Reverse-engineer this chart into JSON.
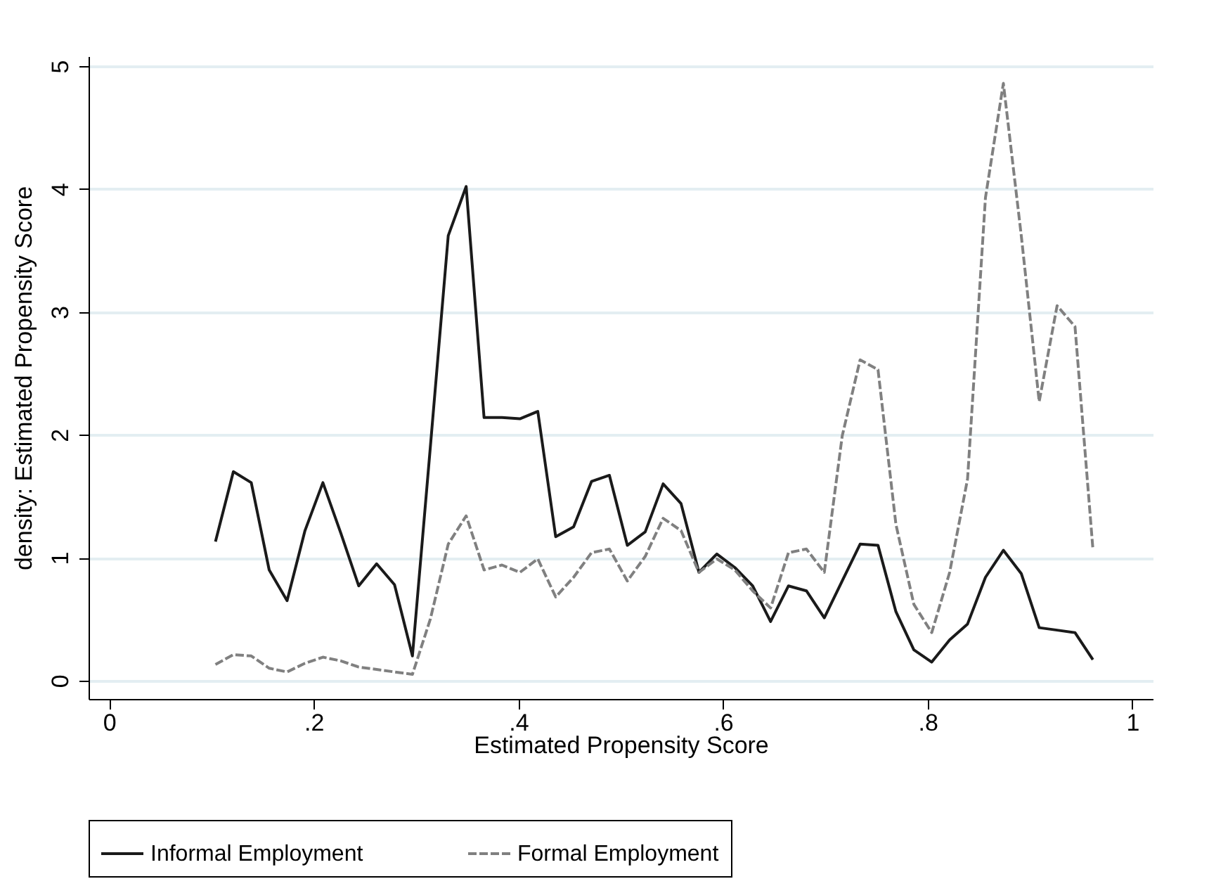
{
  "chart_data": {
    "type": "line",
    "xlabel": "Estimated Propensity Score",
    "ylabel": "density: Estimated Propensity Score",
    "x": [
      0.104,
      0.1215,
      0.139,
      0.1565,
      0.174,
      0.1915,
      0.209,
      0.2265,
      0.244,
      0.2615,
      0.279,
      0.2965,
      0.314,
      0.3315,
      0.349,
      0.3665,
      0.384,
      0.4015,
      0.419,
      0.4365,
      0.454,
      0.4715,
      0.489,
      0.5065,
      0.524,
      0.5415,
      0.559,
      0.5765,
      0.594,
      0.6115,
      0.629,
      0.6465,
      0.664,
      0.6815,
      0.699,
      0.7165,
      0.734,
      0.7515,
      0.769,
      0.7865,
      0.804,
      0.8215,
      0.839,
      0.8565,
      0.874,
      0.8915,
      0.909,
      0.9265,
      0.944,
      0.9615
    ],
    "series": [
      {
        "name": "Informal Employment",
        "color": "#1a1a1a",
        "line_style": "solid",
        "values": [
          1.13,
          1.7,
          1.61,
          0.9,
          0.65,
          1.22,
          1.61,
          1.2,
          0.77,
          0.95,
          0.78,
          0.2,
          1.9,
          3.62,
          4.02,
          2.14,
          2.14,
          2.13,
          2.19,
          1.17,
          1.25,
          1.62,
          1.67,
          1.1,
          1.21,
          1.6,
          1.44,
          0.88,
          1.03,
          0.92,
          0.77,
          0.48,
          0.77,
          0.73,
          0.51,
          0.81,
          1.11,
          1.1,
          0.56,
          0.25,
          0.15,
          0.33,
          0.46,
          0.84,
          1.06,
          0.87,
          0.43,
          0.41,
          0.39,
          0.17
        ]
      },
      {
        "name": "Formal Employment",
        "color": "#808080",
        "line_style": "dashed",
        "values": [
          0.13,
          0.21,
          0.2,
          0.1,
          0.07,
          0.14,
          0.19,
          0.16,
          0.11,
          0.09,
          0.07,
          0.05,
          0.5,
          1.11,
          1.34,
          0.9,
          0.94,
          0.88,
          0.99,
          0.68,
          0.84,
          1.04,
          1.07,
          0.81,
          1.01,
          1.32,
          1.22,
          0.88,
          0.99,
          0.9,
          0.73,
          0.59,
          1.04,
          1.07,
          0.88,
          1.99,
          2.61,
          2.53,
          1.27,
          0.62,
          0.39,
          0.88,
          1.64,
          3.93,
          4.86,
          3.62,
          2.27,
          3.05,
          2.88,
          1.07
        ]
      }
    ],
    "xlim": [
      -0.02,
      1.02
    ],
    "ylim": [
      -0.15,
      5.08
    ],
    "xticks": [
      0,
      {
        "value": 0.2,
        "label": ".2"
      },
      {
        "value": 0.4,
        "label": ".4"
      },
      {
        "value": 0.6,
        "label": ".6"
      },
      {
        "value": 0.8,
        "label": ".8"
      },
      1
    ],
    "yticks": [
      0,
      1,
      2,
      3,
      4,
      5
    ],
    "grid": "y",
    "legend": "bottom",
    "marker": "none"
  }
}
